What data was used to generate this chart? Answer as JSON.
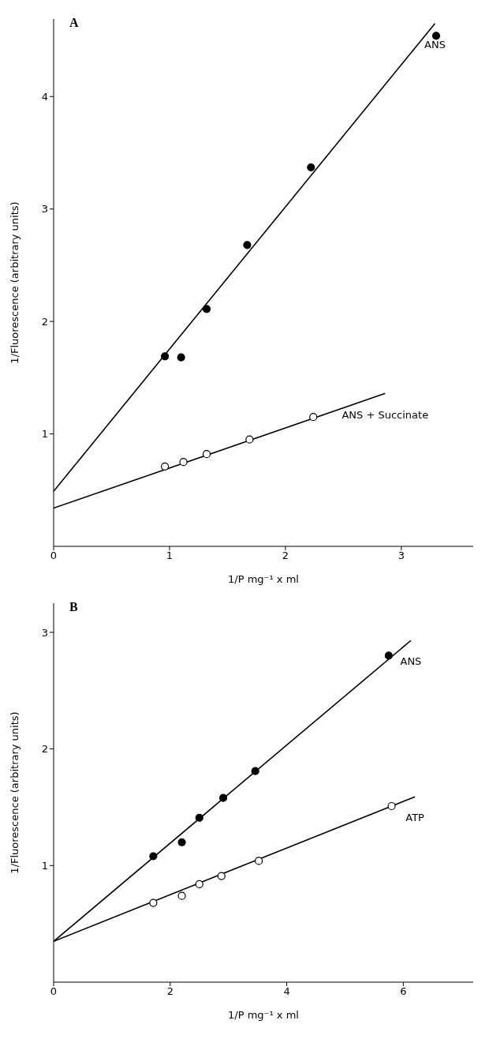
{
  "chart_data": [
    {
      "type": "scatter",
      "title": "A",
      "xlabel": "1/P mg⁻¹ x ml",
      "ylabel": "1/Fluorescence (arbitrary units)",
      "xlim": [
        0,
        3.62
      ],
      "xticks": [
        0,
        1,
        2,
        3
      ],
      "ylim": [
        0,
        4.69
      ],
      "yticks": [
        1,
        2,
        3,
        4
      ],
      "marker": "circle",
      "series": [
        {
          "type": "scatter",
          "color": "#000000",
          "x": [
            0.96,
            1.1,
            1.32,
            1.67,
            2.22,
            3.3
          ],
          "values": [
            1.69,
            1.68,
            2.11,
            2.68,
            3.37,
            4.54
          ]
        },
        {
          "type": "line",
          "name": "ANS",
          "marker": "none",
          "color": "#000000",
          "x": [
            0,
            3.29
          ],
          "values": [
            0.49,
            4.65
          ]
        },
        {
          "type": "scatter",
          "color": "#ffffff",
          "x": [
            0.96,
            1.12,
            1.32,
            1.69,
            2.24
          ],
          "values": [
            0.71,
            0.75,
            0.82,
            0.95,
            1.15
          ]
        },
        {
          "type": "line",
          "name": "ANS + Succinate",
          "marker": "none",
          "color": "#000000",
          "x": [
            0,
            2.86
          ],
          "values": [
            0.34,
            1.36
          ]
        }
      ]
    },
    {
      "type": "scatter",
      "title": "B",
      "xlabel": "1/P mg⁻¹ x ml",
      "ylabel": "1/Fluorescence (arbitrary units)",
      "xlim": [
        0,
        7.2
      ],
      "xticks": [
        0,
        2,
        4,
        6
      ],
      "ylim": [
        0,
        3.25
      ],
      "yticks": [
        1,
        2,
        3
      ],
      "marker": "circle",
      "series": [
        {
          "type": "scatter",
          "color": "#000000",
          "x": [
            1.71,
            2.2,
            2.5,
            2.91,
            3.46,
            5.75
          ],
          "values": [
            1.08,
            1.2,
            1.41,
            1.58,
            1.81,
            2.8
          ]
        },
        {
          "type": "line",
          "name": "ANS",
          "marker": "none",
          "color": "#000000",
          "x": [
            0,
            6.13
          ],
          "values": [
            0.35,
            2.93
          ]
        },
        {
          "type": "scatter",
          "color": "#ffffff",
          "x": [
            1.71,
            2.2,
            2.5,
            2.88,
            3.52,
            5.8
          ],
          "values": [
            0.68,
            0.74,
            0.84,
            0.91,
            1.04,
            1.51
          ]
        },
        {
          "type": "line",
          "name": "ATP",
          "marker": "none",
          "color": "#000000",
          "x": [
            0,
            6.2
          ],
          "values": [
            0.35,
            1.59
          ]
        }
      ]
    }
  ]
}
